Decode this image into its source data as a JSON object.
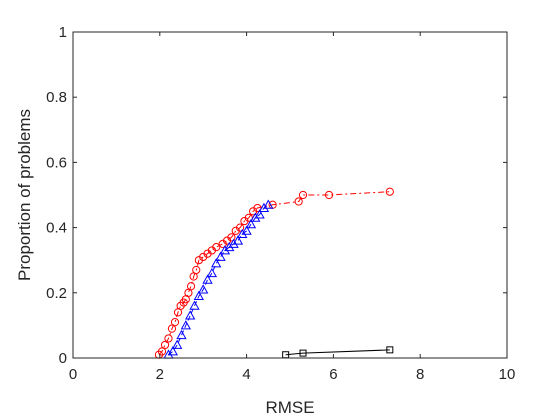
{
  "chart_data": {
    "type": "line",
    "title": "",
    "xlabel": "RMSE",
    "ylabel": "Proportion of problems",
    "xlim": [
      0,
      10
    ],
    "ylim": [
      0,
      1
    ],
    "xticks": [
      0,
      2,
      4,
      6,
      8,
      10
    ],
    "xtick_labels": [
      "0",
      "2",
      "4",
      "6",
      "8",
      "10"
    ],
    "yticks": [
      0,
      0.2,
      0.4,
      0.6,
      0.8,
      1
    ],
    "ytick_labels": [
      "0",
      "0.2",
      "0.4",
      "0.6",
      "0.8",
      "1"
    ],
    "grid": false,
    "box": true,
    "series": [
      {
        "color": "#ff0000",
        "line_style": "dash-dot",
        "marker": "circle",
        "x": [
          1.98,
          2.05,
          2.12,
          2.2,
          2.28,
          2.35,
          2.42,
          2.48,
          2.55,
          2.6,
          2.66,
          2.72,
          2.78,
          2.84,
          2.9,
          3.0,
          3.1,
          3.2,
          3.3,
          3.45,
          3.55,
          3.65,
          3.75,
          3.85,
          3.95,
          4.05,
          4.15,
          4.25,
          4.6,
          5.2,
          5.3,
          5.9,
          7.3
        ],
        "y": [
          0.01,
          0.02,
          0.04,
          0.06,
          0.09,
          0.11,
          0.14,
          0.16,
          0.17,
          0.18,
          0.2,
          0.22,
          0.25,
          0.27,
          0.3,
          0.31,
          0.32,
          0.33,
          0.34,
          0.35,
          0.36,
          0.37,
          0.39,
          0.4,
          0.42,
          0.43,
          0.45,
          0.46,
          0.47,
          0.48,
          0.5,
          0.5,
          0.51
        ]
      },
      {
        "color": "#0000ff",
        "line_style": "dashed",
        "marker": "triangle",
        "x": [
          2.2,
          2.3,
          2.4,
          2.5,
          2.6,
          2.7,
          2.8,
          2.9,
          3.0,
          3.1,
          3.2,
          3.3,
          3.4,
          3.5,
          3.6,
          3.7,
          3.8,
          3.9,
          4.0,
          4.1,
          4.2,
          4.3,
          4.4,
          4.5
        ],
        "y": [
          0.01,
          0.02,
          0.04,
          0.07,
          0.1,
          0.13,
          0.16,
          0.19,
          0.21,
          0.24,
          0.26,
          0.29,
          0.31,
          0.33,
          0.34,
          0.35,
          0.36,
          0.38,
          0.39,
          0.41,
          0.43,
          0.44,
          0.46,
          0.47
        ]
      },
      {
        "color": "#000000",
        "line_style": "solid",
        "marker": "square",
        "x": [
          4.9,
          5.3,
          7.3
        ],
        "y": [
          0.01,
          0.015,
          0.025
        ]
      }
    ]
  }
}
